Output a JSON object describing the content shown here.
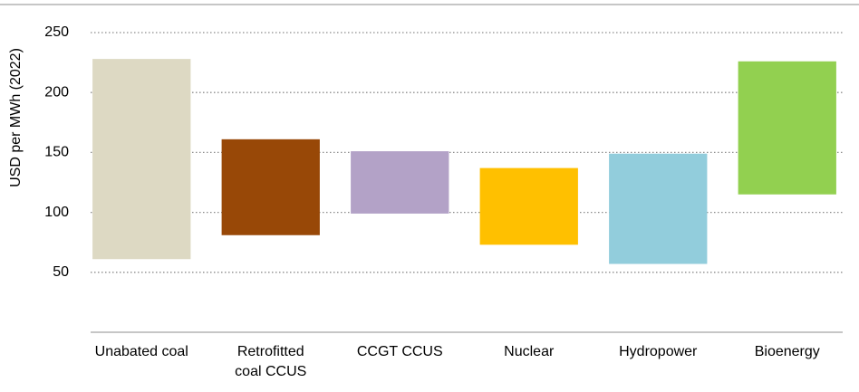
{
  "chart_data": {
    "type": "range_bar",
    "y_label": "USD per MWh (2022)",
    "categories": [
      "Unabated coal",
      "Retrofitted coal CCUS",
      "CCGT CCUS",
      "Nuclear",
      "Hydropower",
      "Bioenergy"
    ],
    "low": [
      61,
      81,
      99,
      73,
      57,
      115
    ],
    "high": [
      228,
      161,
      151,
      137,
      149,
      226
    ],
    "colors": [
      "#ddd9c3",
      "#984807",
      "#b3a2c7",
      "#ffc000",
      "#92cddc",
      "#92d050"
    ],
    "ylim": [
      0,
      250
    ],
    "yticks": [
      50,
      100,
      150,
      200,
      250
    ],
    "grid": true
  }
}
